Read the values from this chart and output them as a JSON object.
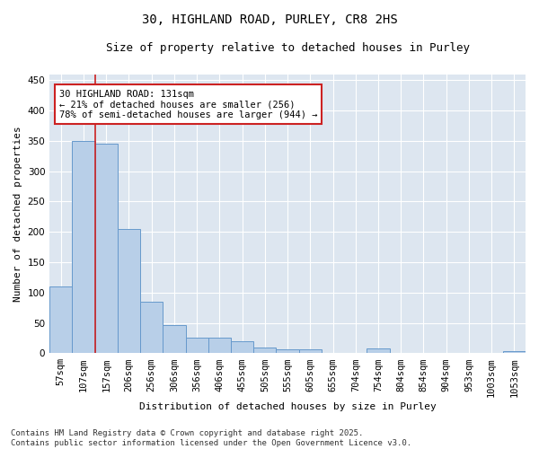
{
  "title": "30, HIGHLAND ROAD, PURLEY, CR8 2HS",
  "subtitle": "Size of property relative to detached houses in Purley",
  "xlabel": "Distribution of detached houses by size in Purley",
  "ylabel": "Number of detached properties",
  "bar_labels": [
    "57sqm",
    "107sqm",
    "157sqm",
    "206sqm",
    "256sqm",
    "306sqm",
    "356sqm",
    "406sqm",
    "455sqm",
    "505sqm",
    "555sqm",
    "605sqm",
    "655sqm",
    "704sqm",
    "754sqm",
    "804sqm",
    "854sqm",
    "904sqm",
    "953sqm",
    "1003sqm",
    "1053sqm"
  ],
  "bar_values": [
    110,
    350,
    345,
    204,
    85,
    46,
    25,
    25,
    20,
    10,
    7,
    7,
    0,
    0,
    8,
    0,
    0,
    0,
    0,
    0,
    3
  ],
  "bar_color": "#b8cfe8",
  "bar_edge_color": "#6699cc",
  "bg_color": "#dde6f0",
  "grid_color": "#ffffff",
  "vline_color": "#cc2222",
  "annotation_text": "30 HIGHLAND ROAD: 131sqm\n← 21% of detached houses are smaller (256)\n78% of semi-detached houses are larger (944) →",
  "annotation_box_facecolor": "#ffffff",
  "annotation_box_edgecolor": "#cc2222",
  "ylim": [
    0,
    460
  ],
  "yticks": [
    0,
    50,
    100,
    150,
    200,
    250,
    300,
    350,
    400,
    450
  ],
  "footnote": "Contains HM Land Registry data © Crown copyright and database right 2025.\nContains public sector information licensed under the Open Government Licence v3.0.",
  "title_fontsize": 10,
  "subtitle_fontsize": 9,
  "axis_label_fontsize": 8,
  "tick_fontsize": 7.5,
  "annotation_fontsize": 7.5,
  "footnote_fontsize": 6.5
}
